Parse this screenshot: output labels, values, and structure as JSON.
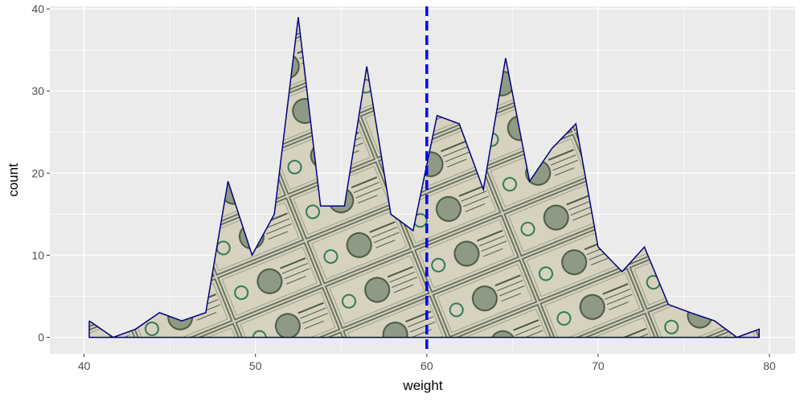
{
  "chart_data": {
    "type": "area",
    "title": "",
    "xlabel": "weight",
    "ylabel": "count",
    "xlim": [
      38,
      81.5
    ],
    "ylim": [
      -2,
      40.3
    ],
    "x_ticks": [
      40,
      50,
      60,
      70,
      80
    ],
    "y_ticks": [
      0,
      10,
      20,
      30,
      40
    ],
    "x_tick_labels": [
      "40",
      "50",
      "60",
      "70",
      "80"
    ],
    "y_tick_labels": [
      "0",
      "10",
      "20",
      "30",
      "40"
    ],
    "series": [
      {
        "x": [
          40.3,
          41.7,
          43.0,
          44.4,
          45.7,
          47.1,
          48.4,
          49.8,
          51.1,
          52.5,
          53.8,
          55.2,
          56.5,
          57.9,
          59.2,
          60.6,
          61.9,
          63.3,
          64.6,
          66.0,
          67.3,
          68.7,
          70.0,
          71.4,
          72.7,
          74.1,
          75.4,
          76.8,
          78.1,
          79.4
        ],
        "values": [
          2,
          0,
          1,
          3,
          2,
          3,
          19,
          10,
          15,
          39,
          16,
          16,
          33,
          15,
          13,
          27,
          26,
          18,
          34,
          19,
          23,
          26,
          11,
          8,
          11,
          4,
          3,
          2,
          0,
          1
        ]
      }
    ],
    "vline": {
      "x": 60,
      "style": "dashed",
      "color": "#0000ff"
    },
    "grid": true,
    "legend": "none",
    "colors": {
      "panel_background": "#ebebeb",
      "grid": "#ffffff",
      "series_line": "#000080",
      "fill_paper": "#d6d2bf",
      "fill_ink": "#4b5a44",
      "fill_accent": "#2e7a52"
    }
  }
}
